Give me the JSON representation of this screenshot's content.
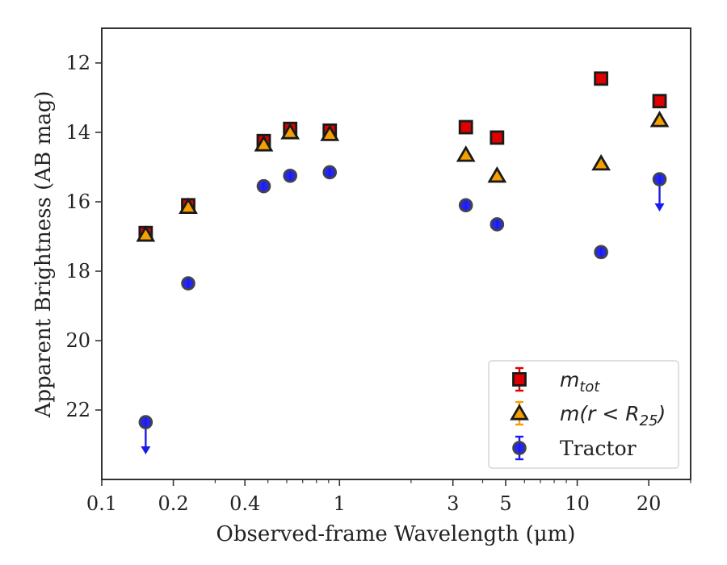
{
  "chart_data": {
    "type": "scatter",
    "xlabel": "Observed-frame Wavelength (μm)",
    "ylabel": "Apparent Brightness (AB mag)",
    "xscale": "log",
    "xlim": [
      0.1,
      30
    ],
    "ylim": [
      24.0,
      11.0
    ],
    "y_inverted": true,
    "x_ticks": [
      0.1,
      0.2,
      0.4,
      1,
      3,
      5,
      10,
      20
    ],
    "x_tick_labels": [
      "0.1",
      "0.2",
      "0.4",
      "1",
      "3",
      "5",
      "10",
      "20"
    ],
    "y_ticks": [
      12,
      14,
      16,
      18,
      20,
      22
    ],
    "y_tick_labels": [
      "12",
      "14",
      "16",
      "18",
      "20",
      "22"
    ],
    "grid": false,
    "legend_position": "lower right",
    "series": [
      {
        "name": "m_tot",
        "legend_label": "m",
        "legend_sub": "tot",
        "marker": "square",
        "color": "#e00000",
        "edge": "#1a1a1a",
        "points": [
          {
            "x": 0.153,
            "y": 16.9
          },
          {
            "x": 0.231,
            "y": 16.1
          },
          {
            "x": 0.48,
            "y": 14.25
          },
          {
            "x": 0.62,
            "y": 13.9
          },
          {
            "x": 0.91,
            "y": 13.95
          },
          {
            "x": 3.4,
            "y": 13.85
          },
          {
            "x": 4.6,
            "y": 14.15
          },
          {
            "x": 12.6,
            "y": 12.45
          },
          {
            "x": 22.2,
            "y": 13.1
          }
        ]
      },
      {
        "name": "m(r < R25)",
        "legend_label": "m(r < R",
        "legend_sub": "25",
        "legend_suffix": ")",
        "marker": "triangle",
        "color": "#f5a000",
        "edge": "#1a1a1a",
        "points": [
          {
            "x": 0.153,
            "y": 16.95
          },
          {
            "x": 0.231,
            "y": 16.15
          },
          {
            "x": 0.48,
            "y": 14.35
          },
          {
            "x": 0.62,
            "y": 14.0
          },
          {
            "x": 0.91,
            "y": 14.05
          },
          {
            "x": 3.4,
            "y": 14.65
          },
          {
            "x": 4.6,
            "y": 15.25
          },
          {
            "x": 12.6,
            "y": 14.9
          },
          {
            "x": 22.2,
            "y": 13.65
          }
        ]
      },
      {
        "name": "Tractor",
        "legend_label": "Tractor",
        "marker": "circle",
        "color": "#1a1aee",
        "edge": "#444444",
        "points": [
          {
            "x": 0.153,
            "y": 22.35,
            "upper_limit": true
          },
          {
            "x": 0.231,
            "y": 18.35
          },
          {
            "x": 0.48,
            "y": 15.55
          },
          {
            "x": 0.62,
            "y": 15.25
          },
          {
            "x": 0.91,
            "y": 15.15
          },
          {
            "x": 3.4,
            "y": 16.1
          },
          {
            "x": 4.6,
            "y": 16.65
          },
          {
            "x": 12.6,
            "y": 17.45
          },
          {
            "x": 22.2,
            "y": 15.35,
            "upper_limit": true
          }
        ]
      }
    ]
  }
}
